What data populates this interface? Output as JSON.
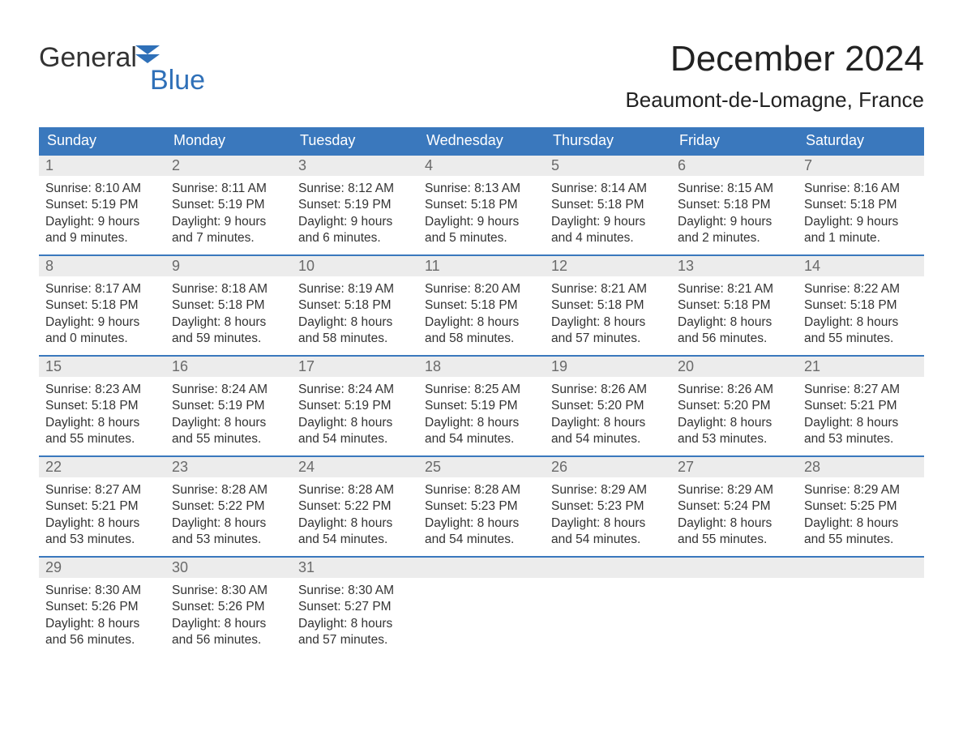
{
  "logo": {
    "general": "General",
    "blue": "Blue",
    "icon_color": "#2f70b8"
  },
  "title": "December 2024",
  "subtitle": "Beaumont-de-Lomagne, France",
  "colors": {
    "header_bg": "#3a78bd",
    "header_text": "#ffffff",
    "daynum_bg": "#ececec",
    "daynum_text": "#6a6a6a",
    "body_text": "#333333",
    "week_border": "#3a78bd",
    "page_bg": "#ffffff"
  },
  "typography": {
    "title_fontsize": 44,
    "subtitle_fontsize": 26,
    "dow_fontsize": 18,
    "daynum_fontsize": 18,
    "body_fontsize": 15.5,
    "font_family": "Arial"
  },
  "days_of_week": [
    "Sunday",
    "Monday",
    "Tuesday",
    "Wednesday",
    "Thursday",
    "Friday",
    "Saturday"
  ],
  "labels": {
    "sunrise": "Sunrise",
    "sunset": "Sunset",
    "daylight": "Daylight"
  },
  "weeks": [
    [
      {
        "day": "1",
        "sunrise": "8:10 AM",
        "sunset": "5:19 PM",
        "daylight_l1": "Daylight: 9 hours",
        "daylight_l2": "and 9 minutes."
      },
      {
        "day": "2",
        "sunrise": "8:11 AM",
        "sunset": "5:19 PM",
        "daylight_l1": "Daylight: 9 hours",
        "daylight_l2": "and 7 minutes."
      },
      {
        "day": "3",
        "sunrise": "8:12 AM",
        "sunset": "5:19 PM",
        "daylight_l1": "Daylight: 9 hours",
        "daylight_l2": "and 6 minutes."
      },
      {
        "day": "4",
        "sunrise": "8:13 AM",
        "sunset": "5:18 PM",
        "daylight_l1": "Daylight: 9 hours",
        "daylight_l2": "and 5 minutes."
      },
      {
        "day": "5",
        "sunrise": "8:14 AM",
        "sunset": "5:18 PM",
        "daylight_l1": "Daylight: 9 hours",
        "daylight_l2": "and 4 minutes."
      },
      {
        "day": "6",
        "sunrise": "8:15 AM",
        "sunset": "5:18 PM",
        "daylight_l1": "Daylight: 9 hours",
        "daylight_l2": "and 2 minutes."
      },
      {
        "day": "7",
        "sunrise": "8:16 AM",
        "sunset": "5:18 PM",
        "daylight_l1": "Daylight: 9 hours",
        "daylight_l2": "and 1 minute."
      }
    ],
    [
      {
        "day": "8",
        "sunrise": "8:17 AM",
        "sunset": "5:18 PM",
        "daylight_l1": "Daylight: 9 hours",
        "daylight_l2": "and 0 minutes."
      },
      {
        "day": "9",
        "sunrise": "8:18 AM",
        "sunset": "5:18 PM",
        "daylight_l1": "Daylight: 8 hours",
        "daylight_l2": "and 59 minutes."
      },
      {
        "day": "10",
        "sunrise": "8:19 AM",
        "sunset": "5:18 PM",
        "daylight_l1": "Daylight: 8 hours",
        "daylight_l2": "and 58 minutes."
      },
      {
        "day": "11",
        "sunrise": "8:20 AM",
        "sunset": "5:18 PM",
        "daylight_l1": "Daylight: 8 hours",
        "daylight_l2": "and 58 minutes."
      },
      {
        "day": "12",
        "sunrise": "8:21 AM",
        "sunset": "5:18 PM",
        "daylight_l1": "Daylight: 8 hours",
        "daylight_l2": "and 57 minutes."
      },
      {
        "day": "13",
        "sunrise": "8:21 AM",
        "sunset": "5:18 PM",
        "daylight_l1": "Daylight: 8 hours",
        "daylight_l2": "and 56 minutes."
      },
      {
        "day": "14",
        "sunrise": "8:22 AM",
        "sunset": "5:18 PM",
        "daylight_l1": "Daylight: 8 hours",
        "daylight_l2": "and 55 minutes."
      }
    ],
    [
      {
        "day": "15",
        "sunrise": "8:23 AM",
        "sunset": "5:18 PM",
        "daylight_l1": "Daylight: 8 hours",
        "daylight_l2": "and 55 minutes."
      },
      {
        "day": "16",
        "sunrise": "8:24 AM",
        "sunset": "5:19 PM",
        "daylight_l1": "Daylight: 8 hours",
        "daylight_l2": "and 55 minutes."
      },
      {
        "day": "17",
        "sunrise": "8:24 AM",
        "sunset": "5:19 PM",
        "daylight_l1": "Daylight: 8 hours",
        "daylight_l2": "and 54 minutes."
      },
      {
        "day": "18",
        "sunrise": "8:25 AM",
        "sunset": "5:19 PM",
        "daylight_l1": "Daylight: 8 hours",
        "daylight_l2": "and 54 minutes."
      },
      {
        "day": "19",
        "sunrise": "8:26 AM",
        "sunset": "5:20 PM",
        "daylight_l1": "Daylight: 8 hours",
        "daylight_l2": "and 54 minutes."
      },
      {
        "day": "20",
        "sunrise": "8:26 AM",
        "sunset": "5:20 PM",
        "daylight_l1": "Daylight: 8 hours",
        "daylight_l2": "and 53 minutes."
      },
      {
        "day": "21",
        "sunrise": "8:27 AM",
        "sunset": "5:21 PM",
        "daylight_l1": "Daylight: 8 hours",
        "daylight_l2": "and 53 minutes."
      }
    ],
    [
      {
        "day": "22",
        "sunrise": "8:27 AM",
        "sunset": "5:21 PM",
        "daylight_l1": "Daylight: 8 hours",
        "daylight_l2": "and 53 minutes."
      },
      {
        "day": "23",
        "sunrise": "8:28 AM",
        "sunset": "5:22 PM",
        "daylight_l1": "Daylight: 8 hours",
        "daylight_l2": "and 53 minutes."
      },
      {
        "day": "24",
        "sunrise": "8:28 AM",
        "sunset": "5:22 PM",
        "daylight_l1": "Daylight: 8 hours",
        "daylight_l2": "and 54 minutes."
      },
      {
        "day": "25",
        "sunrise": "8:28 AM",
        "sunset": "5:23 PM",
        "daylight_l1": "Daylight: 8 hours",
        "daylight_l2": "and 54 minutes."
      },
      {
        "day": "26",
        "sunrise": "8:29 AM",
        "sunset": "5:23 PM",
        "daylight_l1": "Daylight: 8 hours",
        "daylight_l2": "and 54 minutes."
      },
      {
        "day": "27",
        "sunrise": "8:29 AM",
        "sunset": "5:24 PM",
        "daylight_l1": "Daylight: 8 hours",
        "daylight_l2": "and 55 minutes."
      },
      {
        "day": "28",
        "sunrise": "8:29 AM",
        "sunset": "5:25 PM",
        "daylight_l1": "Daylight: 8 hours",
        "daylight_l2": "and 55 minutes."
      }
    ],
    [
      {
        "day": "29",
        "sunrise": "8:30 AM",
        "sunset": "5:26 PM",
        "daylight_l1": "Daylight: 8 hours",
        "daylight_l2": "and 56 minutes."
      },
      {
        "day": "30",
        "sunrise": "8:30 AM",
        "sunset": "5:26 PM",
        "daylight_l1": "Daylight: 8 hours",
        "daylight_l2": "and 56 minutes."
      },
      {
        "day": "31",
        "sunrise": "8:30 AM",
        "sunset": "5:27 PM",
        "daylight_l1": "Daylight: 8 hours",
        "daylight_l2": "and 57 minutes."
      },
      {
        "empty": true
      },
      {
        "empty": true
      },
      {
        "empty": true
      },
      {
        "empty": true
      }
    ]
  ]
}
